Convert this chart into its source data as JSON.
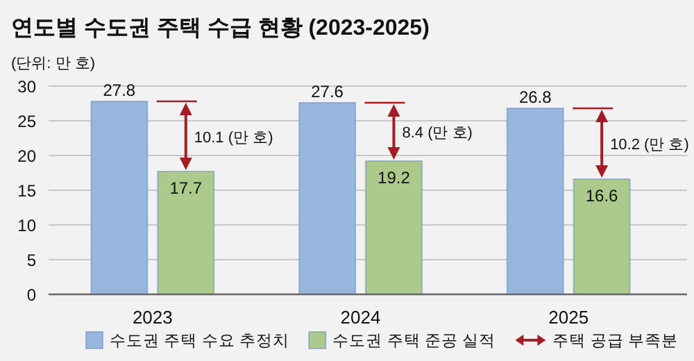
{
  "chart_data": {
    "type": "bar",
    "title": "연도별 수도권 주택 수급 현황 (2023-2025)",
    "ylabel": "(단위: 만 호)",
    "categories": [
      "2023",
      "2024",
      "2025"
    ],
    "series": [
      {
        "name": "수도권 주택 수요 추정치",
        "color": "#97b7df",
        "values": [
          27.8,
          27.6,
          26.8
        ]
      },
      {
        "name": "수도권 주택 준공 실적",
        "color": "#abca8c",
        "values": [
          17.7,
          19.2,
          16.6
        ]
      }
    ],
    "annotations": [
      {
        "text": "10.1 (만 호)",
        "x": "2023",
        "y": 22.75
      },
      {
        "text": "8.4 (만 호)",
        "x": "2024",
        "y": 23.4
      },
      {
        "text": "10.2 (만 호)",
        "x": "2025",
        "y": 21.7
      },
      "주택 공급 부족분"
    ],
    "ylim": [
      0,
      30
    ],
    "yticks": [
      0,
      5,
      10,
      15,
      20,
      25,
      30
    ],
    "grid": "y",
    "data_labels": true,
    "legend": "bottom"
  }
}
